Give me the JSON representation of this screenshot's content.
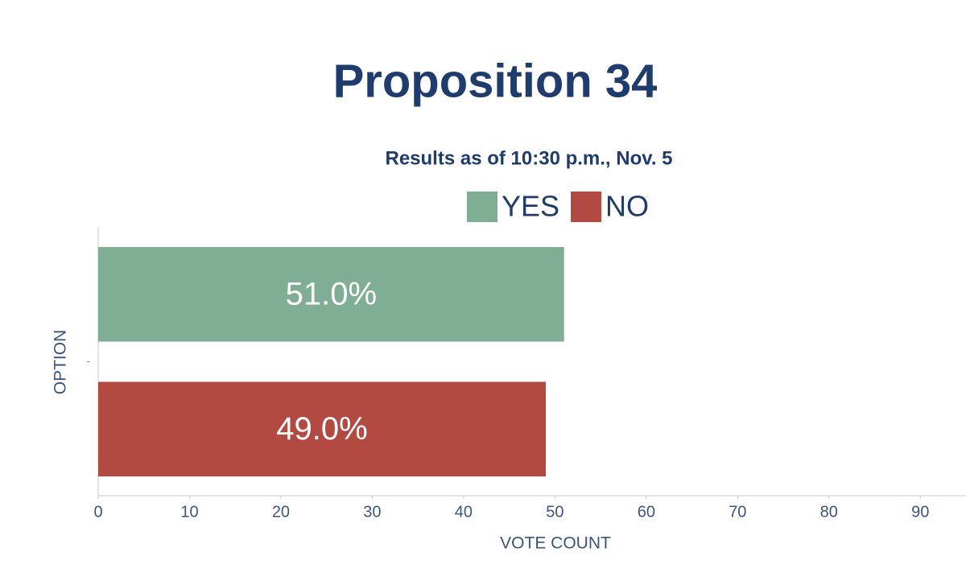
{
  "chart_data": {
    "type": "bar",
    "orientation": "horizontal",
    "title": "Proposition 34",
    "subtitle": "Results as of 10:30 p.m., Nov. 5",
    "categories": [
      null
    ],
    "series": [
      {
        "name": "YES",
        "color": "#7fae94",
        "values": [
          51
        ],
        "value_labels": [
          "51.0%"
        ]
      },
      {
        "name": "NO",
        "color": "#b24a42",
        "values": [
          49
        ],
        "value_labels": [
          "49.0%"
        ]
      }
    ],
    "xlim": [
      0,
      95
    ],
    "xticks": [
      0,
      10,
      20,
      30,
      40,
      50,
      60,
      70,
      80,
      90
    ],
    "x_label": "VOTE COUNT",
    "y_label": "OPTION",
    "legend": "top"
  }
}
